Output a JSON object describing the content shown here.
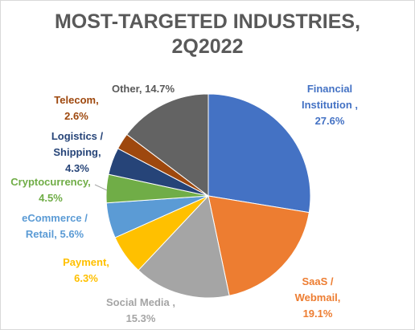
{
  "chart_data": {
    "type": "pie",
    "title_line1": "MOST-TARGETED INDUSTRIES,",
    "title_line2": "2Q2022",
    "slices": [
      {
        "label_lines": [
          "Financial",
          "Institution ,",
          "27.6%"
        ],
        "value": 27.6,
        "color": "#4472c4",
        "text_color": "#4472c4"
      },
      {
        "label_lines": [
          "SaaS /",
          "Webmail,",
          "19.1%"
        ],
        "value": 19.1,
        "color": "#ed7d31",
        "text_color": "#ed7d31"
      },
      {
        "label_lines": [
          "Social Media ,",
          "15.3%"
        ],
        "value": 15.3,
        "color": "#a5a5a5",
        "text_color": "#a5a5a5"
      },
      {
        "label_lines": [
          "Payment,",
          "6.3%"
        ],
        "value": 6.3,
        "color": "#ffc000",
        "text_color": "#ffc000"
      },
      {
        "label_lines": [
          "eCommerce /",
          "Retail, 5.6%"
        ],
        "value": 5.6,
        "color": "#5b9bd5",
        "text_color": "#5b9bd5"
      },
      {
        "label_lines": [
          "Cryptocurrency,",
          "4.5%"
        ],
        "value": 4.5,
        "color": "#70ad47",
        "text_color": "#70ad47"
      },
      {
        "label_lines": [
          "Logistics /",
          "Shipping,",
          "4.3%"
        ],
        "value": 4.3,
        "color": "#264478",
        "text_color": "#264478"
      },
      {
        "label_lines": [
          "Telecom,",
          "2.6%"
        ],
        "value": 2.6,
        "color": "#9e480e",
        "text_color": "#9e480e"
      },
      {
        "label_lines": [
          "Other, 14.7%"
        ],
        "value": 14.7,
        "color": "#636363",
        "text_color": "#595959"
      }
    ]
  }
}
